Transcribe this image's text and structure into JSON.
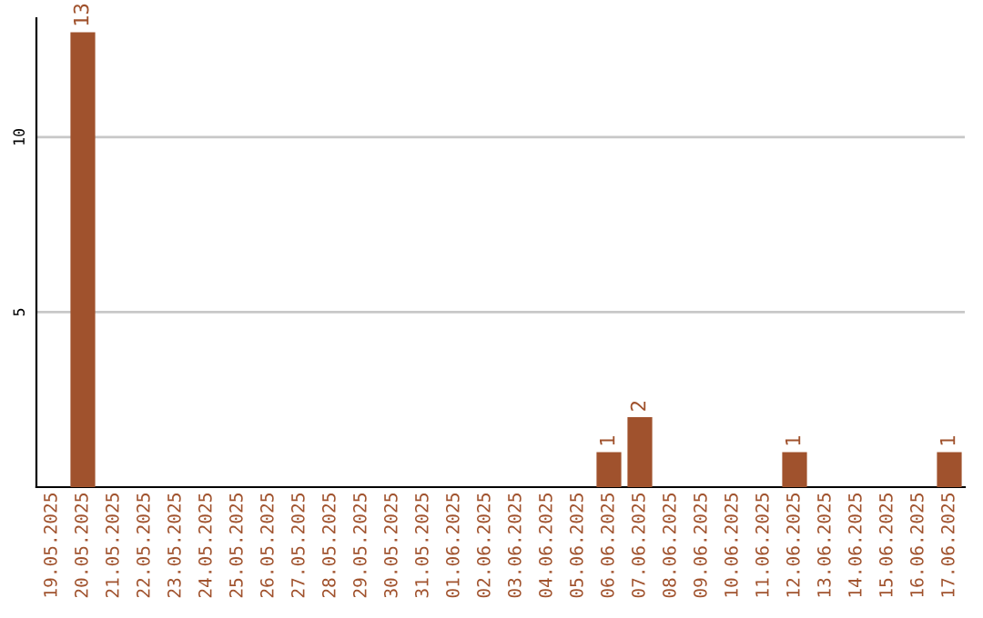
{
  "chart_data": {
    "type": "bar",
    "categories": [
      "19.05.2025",
      "20.05.2025",
      "21.05.2025",
      "22.05.2025",
      "23.05.2025",
      "24.05.2025",
      "25.05.2025",
      "26.05.2025",
      "27.05.2025",
      "28.05.2025",
      "29.05.2025",
      "30.05.2025",
      "31.05.2025",
      "01.06.2025",
      "02.06.2025",
      "03.06.2025",
      "04.06.2025",
      "05.06.2025",
      "06.06.2025",
      "07.06.2025",
      "08.06.2025",
      "09.06.2025",
      "10.06.2025",
      "11.06.2025",
      "12.06.2025",
      "13.06.2025",
      "14.06.2025",
      "15.06.2025",
      "16.06.2025",
      "17.06.2025"
    ],
    "values": [
      0,
      13,
      0,
      0,
      0,
      0,
      0,
      0,
      0,
      0,
      0,
      0,
      0,
      0,
      0,
      0,
      0,
      0,
      1,
      2,
      0,
      0,
      0,
      0,
      1,
      0,
      0,
      0,
      0,
      1
    ],
    "value_labels": [
      null,
      "13",
      null,
      null,
      null,
      null,
      null,
      null,
      null,
      null,
      null,
      null,
      null,
      null,
      null,
      null,
      null,
      null,
      "1",
      "2",
      null,
      null,
      null,
      null,
      "1",
      null,
      null,
      null,
      null,
      "1"
    ],
    "color": "#a0522d",
    "ylim": [
      0,
      13.4
    ],
    "yticks": [
      5,
      10
    ],
    "grid": "y"
  }
}
